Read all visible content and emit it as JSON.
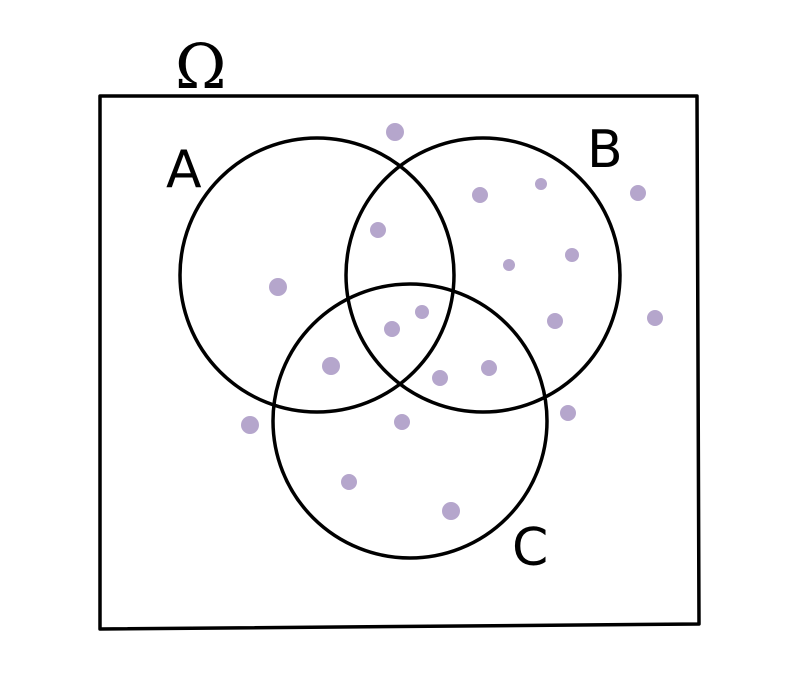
{
  "diagram": {
    "type": "venn",
    "universe_label": "Ω",
    "sets": [
      {
        "name": "A",
        "label": "A"
      },
      {
        "name": "B",
        "label": "B"
      },
      {
        "name": "C",
        "label": "C"
      }
    ],
    "element_count": 20,
    "colors": {
      "outline": "#000000",
      "dot": "#B5A6CC",
      "background": "#ffffff"
    }
  }
}
